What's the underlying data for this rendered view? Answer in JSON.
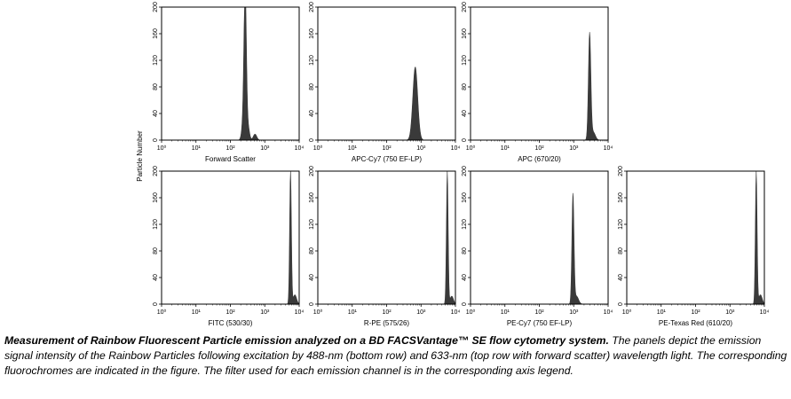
{
  "chart_data": {
    "type": "area",
    "ylabel": "Particle Number",
    "x_ticks": [
      "10^0",
      "10^1",
      "10^2",
      "10^3",
      "10^4"
    ],
    "y_ticks": [
      "0",
      "40",
      "80",
      "120",
      "160",
      "200"
    ],
    "xlim": [
      1,
      10000
    ],
    "ylim": [
      0,
      200
    ],
    "x_scale": "log",
    "panels": [
      {
        "xlabel": "Forward Scatter",
        "row": 1,
        "col": 1,
        "peaks": [
          {
            "x": 270,
            "height": 200,
            "width": 0.035
          },
          {
            "x": 250,
            "height": 40,
            "width": 0.05
          },
          {
            "x": 330,
            "height": 18,
            "width": 0.04
          },
          {
            "x": 520,
            "height": 9,
            "width": 0.05
          }
        ]
      },
      {
        "xlabel": "APC-Cy7 (750 EF-LP)",
        "row": 1,
        "col": 2,
        "peaks": [
          {
            "x": 680,
            "height": 110,
            "width": 0.07
          }
        ]
      },
      {
        "xlabel": "APC (670/20)",
        "row": 1,
        "col": 3,
        "peaks": [
          {
            "x": 2900,
            "height": 160,
            "width": 0.035
          },
          {
            "x": 3700,
            "height": 12,
            "width": 0.06
          }
        ]
      },
      {
        "xlabel": "FITC (530/30)",
        "row": 2,
        "col": 1,
        "peaks": [
          {
            "x": 5600,
            "height": 200,
            "width": 0.025
          },
          {
            "x": 7500,
            "height": 14,
            "width": 0.05
          }
        ]
      },
      {
        "xlabel": "R-PE (575/26)",
        "row": 2,
        "col": 2,
        "peaks": [
          {
            "x": 5800,
            "height": 200,
            "width": 0.025
          },
          {
            "x": 7800,
            "height": 12,
            "width": 0.05
          }
        ]
      },
      {
        "xlabel": "PE-Cy7 (750 EF-LP)",
        "row": 2,
        "col": 3,
        "peaks": [
          {
            "x": 950,
            "height": 165,
            "width": 0.03
          },
          {
            "x": 1200,
            "height": 12,
            "width": 0.06
          }
        ]
      },
      {
        "xlabel": "PE-Texas Red (610/20)",
        "row": 2,
        "col": 4,
        "peaks": [
          {
            "x": 5800,
            "height": 200,
            "width": 0.025
          },
          {
            "x": 7700,
            "height": 14,
            "width": 0.05
          }
        ]
      }
    ]
  },
  "caption": {
    "bold": "Measurement of Rainbow Fluorescent Particle emission analyzed on a BD FACSVantage™ SE flow cytometry system.",
    "rest": " The panels depict the emission signal intensity of the Rainbow Particles following excitation by 488-nm (bottom row) and 633-nm (top row with forward scatter) wavelength light. The corresponding fluorochromes are indicated in the figure. The filter used for each emission channel is in the corresponding axis legend."
  },
  "colors": {
    "fill": "#3a3a3a",
    "axis": "#000000"
  }
}
